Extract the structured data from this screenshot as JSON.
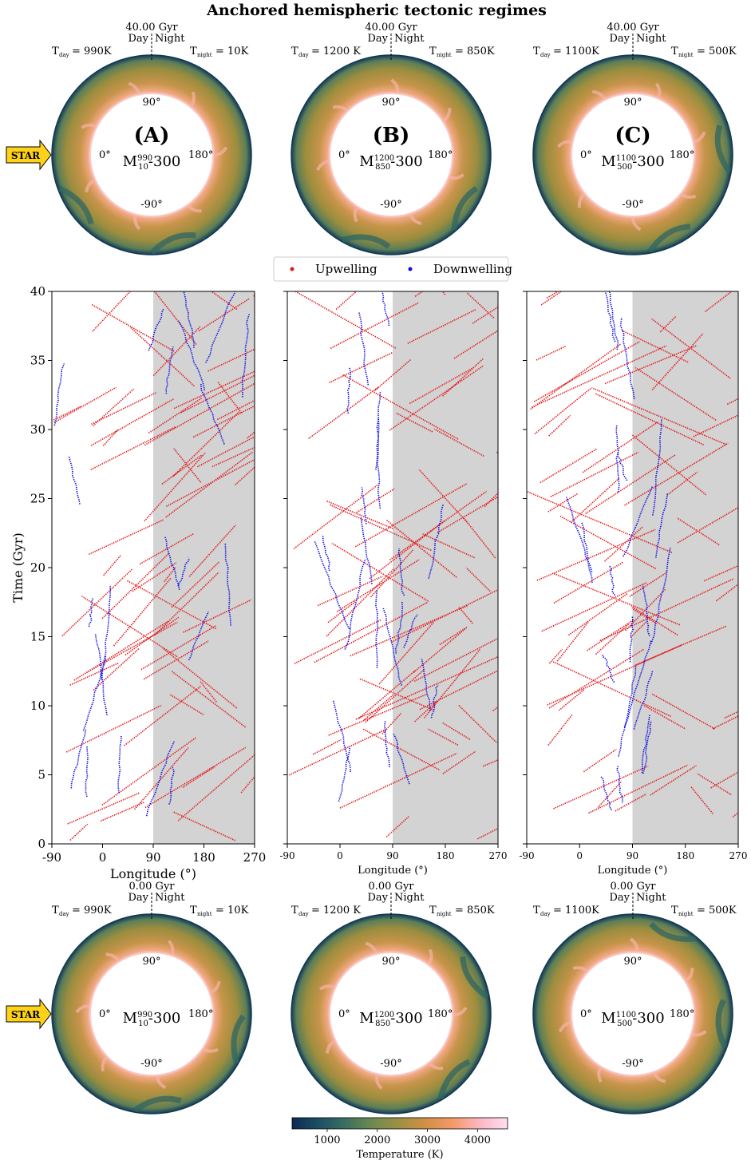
{
  "figure": {
    "title": "Anchored hemispheric tectonic regimes",
    "star_label": "STAR",
    "legend": {
      "up": "Upwelling",
      "down": "Downwelling"
    },
    "colors": {
      "up": "#e31a1c",
      "down": "#1010e0",
      "night_shade": "#d3d3d3",
      "star": "#ffd21a"
    },
    "day_label": "Day",
    "night_label": "Night"
  },
  "panels": [
    {
      "letter": "(A)",
      "model_base": "M",
      "model_sup": "990",
      "model_sub": "10",
      "model_suffix": "-300",
      "tday": "990K",
      "tnight": "10K",
      "top_time": "40.00 Gyr",
      "bottom_time": "0.00 Gyr",
      "lon_0": "0°",
      "lon_90": "90°",
      "lon_180": "180°",
      "lon_m90": "-90°",
      "has_star": true
    },
    {
      "letter": "(B)",
      "model_base": "M",
      "model_sup": "1200",
      "model_sub": "850",
      "model_suffix": "-300",
      "tday": "1200 K",
      "tnight": "850K",
      "top_time": "40.00 Gyr",
      "bottom_time": "0.00 Gyr",
      "lon_0": "0°",
      "lon_90": "90°",
      "lon_180": "180°",
      "lon_m90": "-90°",
      "has_star": false
    },
    {
      "letter": "(C)",
      "model_base": "M",
      "model_sup": "1100",
      "model_sub": "500",
      "model_suffix": "-300",
      "tday": "1100K",
      "tnight": "500K",
      "top_time": "40.00 Gyr",
      "bottom_time": "0.00 Gyr",
      "lon_0": "0°",
      "lon_90": "90°",
      "lon_180": "180°",
      "lon_m90": "-90°",
      "has_star": false
    }
  ],
  "chart_data": {
    "type": "scatter",
    "ylabel": "Time (Gyr)",
    "xlabel": "Longitude (°)",
    "xlim": [
      -90,
      270
    ],
    "ylim": [
      0,
      40
    ],
    "xticks": [
      "-90",
      "0",
      "90",
      "180",
      "270"
    ],
    "yticks": [
      "0",
      "5",
      "10",
      "15",
      "20",
      "25",
      "30",
      "35",
      "40"
    ],
    "night_side": [
      90,
      270
    ],
    "series": [
      {
        "name": "Upwelling",
        "color": "#e31a1c"
      },
      {
        "name": "Downwelling",
        "color": "#1010e0"
      }
    ]
  },
  "colorbar": {
    "label": "Temperature (K)",
    "ticks": [
      "1000",
      "2000",
      "3000",
      "4000"
    ],
    "range": [
      300,
      4600
    ],
    "stops": [
      "#0d2a52",
      "#1b5064",
      "#3d7060",
      "#6f8a4f",
      "#a09042",
      "#d39048",
      "#f49a6a",
      "#fbb8c6",
      "#fde0f0"
    ]
  }
}
